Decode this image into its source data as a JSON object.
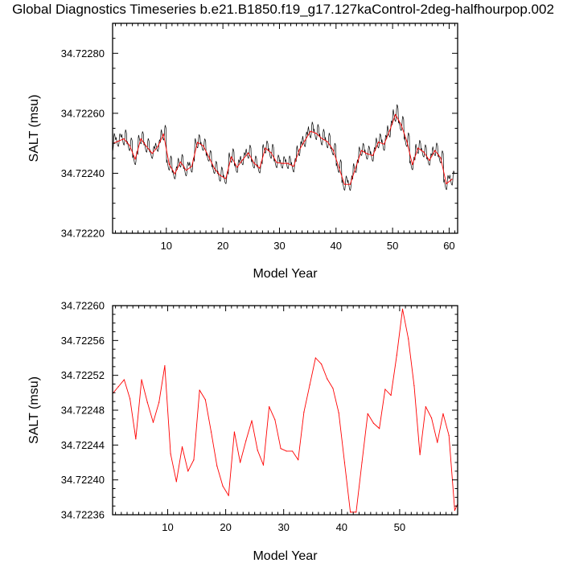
{
  "title": "Global Diagnostics Timeseries b.e21.B1850.f19_g17.127kaControl-2deg-halfhourpop.002",
  "colors": {
    "monthly": "#000000",
    "annual": "#ff0000",
    "frame": "#000000",
    "background": "#ffffff"
  },
  "chart_data": [
    {
      "type": "line",
      "title": "",
      "xlabel": "Model Year",
      "ylabel": "SALT (msu)",
      "xlim": [
        0.5,
        61.5
      ],
      "ylim": [
        34.7222,
        34.7229
      ],
      "xticks": [
        10,
        20,
        30,
        40,
        50,
        60
      ],
      "xtick_labels": [
        "10",
        "20",
        "30",
        "40",
        "50",
        "60"
      ],
      "yticks": [
        34.7222,
        34.7224,
        34.7226,
        34.7228
      ],
      "ytick_labels": [
        "34.72220",
        "34.72240",
        "34.72260",
        "34.72280"
      ],
      "grid": false,
      "monthly_cycle": {
        "type": "line",
        "color": "#000000",
        "samples_per_year": 12,
        "shape": [
          0.2,
          0.5,
          0.1,
          -0.15,
          -0.5,
          -0.65,
          -0.7,
          -0.3,
          0.6,
          1.0,
          0.85,
          0.6
        ],
        "amplitude": [
          3.4e-05,
          2.5e-05,
          3e-05,
          2.5e-05,
          2.6e-05,
          2.4e-05,
          2.7e-05,
          2.4e-05,
          2.3e-05,
          2.9e-05,
          2.8e-05,
          2.4e-05,
          2.5e-05,
          2.7e-05,
          2.8e-05,
          2.6e-05,
          2.3e-05,
          2.1e-05,
          2.4e-05,
          2.8e-05,
          2.4e-05,
          2.7e-05,
          2.5e-05,
          2.4e-05,
          2.6e-05,
          2.4e-05,
          2.3e-05,
          2.4e-05,
          2.8e-05,
          2.5e-05,
          2.3e-05,
          2.5e-05,
          2.7e-05,
          2.8e-05,
          2.9e-05,
          3.1e-05,
          3e-05,
          3.1e-05,
          2.9e-05,
          2.3e-05,
          2.5e-05,
          2.8e-05,
          2.9e-05,
          2.5e-05,
          2.4e-05,
          2.6e-05,
          2.7e-05,
          2.8e-05,
          3e-05,
          3.2e-05,
          3.3e-05,
          2.8e-05,
          2.7e-05,
          2.5e-05,
          2.6e-05,
          2.4e-05,
          2.3e-05,
          2.5e-05,
          2.4e-05,
          2.8e-05,
          2.8e-05
        ]
      },
      "series": [
        {
          "color": "#ff0000",
          "x": [
            0.5,
            1.5,
            2.5,
            3.5,
            4.5,
            5.5,
            6.5,
            7.5,
            8.5,
            9.5,
            10.5,
            11.5,
            12.5,
            13.5,
            14.5,
            15.5,
            16.5,
            17.5,
            18.5,
            19.5,
            20.5,
            21.5,
            22.5,
            23.5,
            24.5,
            25.5,
            26.5,
            27.5,
            28.5,
            29.5,
            30.5,
            31.5,
            32.5,
            33.5,
            34.5,
            35.5,
            36.5,
            37.5,
            38.5,
            39.5,
            40.5,
            41.5,
            42.5,
            43.5,
            44.5,
            45.5,
            46.5,
            47.5,
            48.5,
            49.5,
            50.5,
            51.5,
            52.5,
            53.5,
            54.5,
            55.5,
            56.5,
            57.5,
            58.5,
            59.5,
            60.5
          ],
          "values": [
            34.722499,
            34.722507,
            34.722515,
            34.722493,
            34.722447,
            34.722515,
            34.722489,
            34.722466,
            34.722489,
            34.722531,
            34.72243,
            34.722398,
            34.722438,
            34.72241,
            34.722423,
            34.722503,
            34.722492,
            34.722455,
            34.722416,
            34.722393,
            34.722382,
            34.722455,
            34.72242,
            34.722445,
            34.722468,
            34.722434,
            34.722417,
            34.722484,
            34.722469,
            34.722436,
            34.722433,
            34.722433,
            34.722423,
            34.722478,
            34.722509,
            34.72254,
            34.722533,
            34.722516,
            34.722505,
            34.722477,
            34.72242,
            34.722363,
            34.722363,
            34.72242,
            34.722476,
            34.722465,
            34.722459,
            34.722504,
            34.722497,
            34.722543,
            34.722596,
            34.722562,
            34.722508,
            34.722429,
            34.722484,
            34.722471,
            34.722443,
            34.722476,
            34.722451,
            34.722365,
            34.72238
          ]
        }
      ]
    },
    {
      "type": "line",
      "title": "",
      "xlabel": "Model Year",
      "ylabel": "SALT (msu)",
      "xlim": [
        0.5,
        60
      ],
      "ylim": [
        34.72236,
        34.7226
      ],
      "xticks": [
        10,
        20,
        30,
        40,
        50
      ],
      "xtick_labels": [
        "10",
        "20",
        "30",
        "40",
        "50"
      ],
      "yticks": [
        34.72236,
        34.7224,
        34.72244,
        34.72248,
        34.72252,
        34.72256,
        34.7226
      ],
      "ytick_labels": [
        "34.72236",
        "34.72240",
        "34.72244",
        "34.72248",
        "34.72252",
        "34.72256",
        "34.72260"
      ],
      "grid": false,
      "series": [
        {
          "color": "#ff0000",
          "x": [
            0.5,
            1.5,
            2.5,
            3.5,
            4.5,
            5.5,
            6.5,
            7.5,
            8.5,
            9.5,
            10.5,
            11.5,
            12.5,
            13.5,
            14.5,
            15.5,
            16.5,
            17.5,
            18.5,
            19.5,
            20.5,
            21.5,
            22.5,
            23.5,
            24.5,
            25.5,
            26.5,
            27.5,
            28.5,
            29.5,
            30.5,
            31.5,
            32.5,
            33.5,
            34.5,
            35.5,
            36.5,
            37.5,
            38.5,
            39.5,
            40.5,
            41.5,
            42.5,
            43.5,
            44.5,
            45.5,
            46.5,
            47.5,
            48.5,
            49.5,
            50.5,
            51.5,
            52.5,
            53.5,
            54.5,
            55.5,
            56.5,
            57.5,
            58.5,
            59.5,
            60.5
          ],
          "values": [
            34.722499,
            34.722507,
            34.722515,
            34.722493,
            34.722447,
            34.722515,
            34.722489,
            34.722466,
            34.722489,
            34.722531,
            34.72243,
            34.722398,
            34.722438,
            34.72241,
            34.722423,
            34.722503,
            34.722492,
            34.722455,
            34.722416,
            34.722393,
            34.722382,
            34.722455,
            34.72242,
            34.722445,
            34.722468,
            34.722434,
            34.722417,
            34.722484,
            34.722469,
            34.722436,
            34.722433,
            34.722433,
            34.722423,
            34.722478,
            34.722509,
            34.72254,
            34.722533,
            34.722516,
            34.722505,
            34.722477,
            34.72242,
            34.722363,
            34.722363,
            34.72242,
            34.722476,
            34.722465,
            34.722459,
            34.722504,
            34.722497,
            34.722543,
            34.722596,
            34.722562,
            34.722508,
            34.722429,
            34.722484,
            34.722471,
            34.722443,
            34.722476,
            34.722451,
            34.722365,
            34.72238
          ]
        }
      ]
    }
  ]
}
